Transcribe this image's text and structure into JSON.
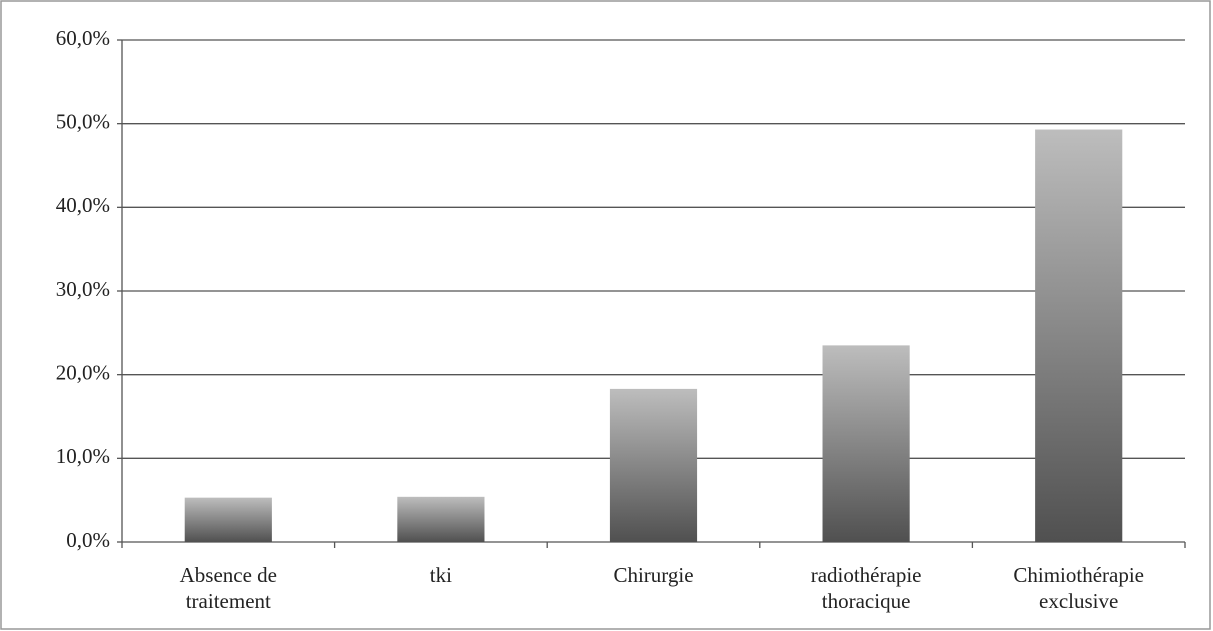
{
  "chart_data": {
    "type": "bar",
    "categories": [
      "Absence de traitement",
      "tki",
      "Chirurgie",
      "radiothérapie thoracique",
      "Chimiothérapie exclusive"
    ],
    "values": [
      5.3,
      5.4,
      18.3,
      23.5,
      49.3
    ],
    "color": "#808080",
    "ylim": [
      0,
      60
    ],
    "yticks": [
      {
        "value": 0,
        "label": "0,0%"
      },
      {
        "value": 10,
        "label": "10,0%"
      },
      {
        "value": 20,
        "label": "20,0%"
      },
      {
        "value": 30,
        "label": "30,0%"
      },
      {
        "value": 40,
        "label": "40,0%"
      },
      {
        "value": 50,
        "label": "50,0%"
      },
      {
        "value": 60,
        "label": "60,0%"
      }
    ],
    "grid": true
  }
}
